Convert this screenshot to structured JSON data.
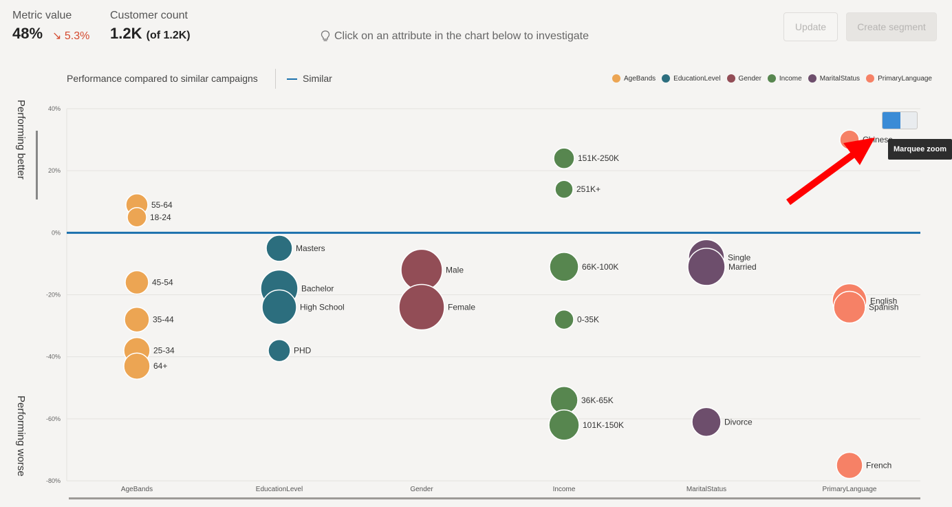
{
  "header": {
    "metric_label": "Metric value",
    "metric_value": "48%",
    "metric_trend": "↘ 5.3%",
    "count_label": "Customer count",
    "count_value": "1.2K",
    "count_sub": "(of 1.2K)",
    "hint": "Click on an attribute in the chart below to investigate",
    "hint_icon": "lightbulb-icon",
    "update_label": "Update",
    "create_label": "Create segment"
  },
  "toolbar": {
    "performance_label": "Performance compared to similar campaigns",
    "similar_label": "Similar"
  },
  "side_labels": {
    "better": "Performing better",
    "worse": "Performing worse"
  },
  "zoom": {
    "tooltip": "Marquee zoom",
    "icon": "marquee-zoom-icon"
  },
  "colors": {
    "AgeBands": "#eca553",
    "EducationLevel": "#2c6e7e",
    "Gender": "#924d56",
    "Income": "#57864f",
    "MaritalStatus": "#6d4e6c",
    "PrimaryLanguage": "#f68166",
    "similar_line": "#1c71ad"
  },
  "chart_data": {
    "type": "scatter",
    "ylim": [
      -80,
      40
    ],
    "y_ticks": [
      "40%",
      "20%",
      "0%",
      "-20%",
      "-40%",
      "-60%",
      "-80%"
    ],
    "y_tick_values": [
      40,
      20,
      0,
      -20,
      -40,
      -60,
      -80
    ],
    "categories": [
      "AgeBands",
      "EducationLevel",
      "Gender",
      "Income",
      "MaritalStatus",
      "PrimaryLanguage"
    ],
    "legend": [
      "AgeBands",
      "EducationLevel",
      "Gender",
      "Income",
      "MaritalStatus",
      "PrimaryLanguage"
    ],
    "reference_line": {
      "name": "Similar",
      "y": 0
    },
    "points": [
      {
        "category": "AgeBands",
        "label": "55-64",
        "y": 9,
        "size": 16
      },
      {
        "category": "AgeBands",
        "label": "18-24",
        "y": 5,
        "size": 14
      },
      {
        "category": "AgeBands",
        "label": "45-54",
        "y": -16,
        "size": 17
      },
      {
        "category": "AgeBands",
        "label": "35-44",
        "y": -28,
        "size": 18
      },
      {
        "category": "AgeBands",
        "label": "25-34",
        "y": -38,
        "size": 19
      },
      {
        "category": "AgeBands",
        "label": "64+",
        "y": -43,
        "size": 19
      },
      {
        "category": "EducationLevel",
        "label": "Masters",
        "y": -5,
        "size": 19
      },
      {
        "category": "EducationLevel",
        "label": "Bachelor",
        "y": -18,
        "size": 27
      },
      {
        "category": "EducationLevel",
        "label": "High School",
        "y": -24,
        "size": 25
      },
      {
        "category": "EducationLevel",
        "label": "PHD",
        "y": -38,
        "size": 16
      },
      {
        "category": "Gender",
        "label": "Male",
        "y": -12,
        "size": 30
      },
      {
        "category": "Gender",
        "label": "Female",
        "y": -24,
        "size": 33
      },
      {
        "category": "Income",
        "label": "151K-250K",
        "y": 24,
        "size": 15
      },
      {
        "category": "Income",
        "label": "251K+",
        "y": 14,
        "size": 13
      },
      {
        "category": "Income",
        "label": "66K-100K",
        "y": -11,
        "size": 21
      },
      {
        "category": "Income",
        "label": "0-35K",
        "y": -28,
        "size": 14
      },
      {
        "category": "Income",
        "label": "36K-65K",
        "y": -54,
        "size": 20
      },
      {
        "category": "Income",
        "label": "101K-150K",
        "y": -62,
        "size": 22
      },
      {
        "category": "MaritalStatus",
        "label": "Single",
        "y": -8,
        "size": 26
      },
      {
        "category": "MaritalStatus",
        "label": "Married",
        "y": -11,
        "size": 27
      },
      {
        "category": "MaritalStatus",
        "label": "Divorce",
        "y": -61,
        "size": 21
      },
      {
        "category": "PrimaryLanguage",
        "label": "English",
        "y": -22,
        "size": 25
      },
      {
        "category": "PrimaryLanguage",
        "label": "Spanish",
        "y": -24,
        "size": 23
      },
      {
        "category": "PrimaryLanguage",
        "label": "French",
        "y": -75,
        "size": 19
      },
      {
        "category": "PrimaryLanguage",
        "label": "Chinese",
        "y": 30,
        "size": 14
      }
    ]
  }
}
